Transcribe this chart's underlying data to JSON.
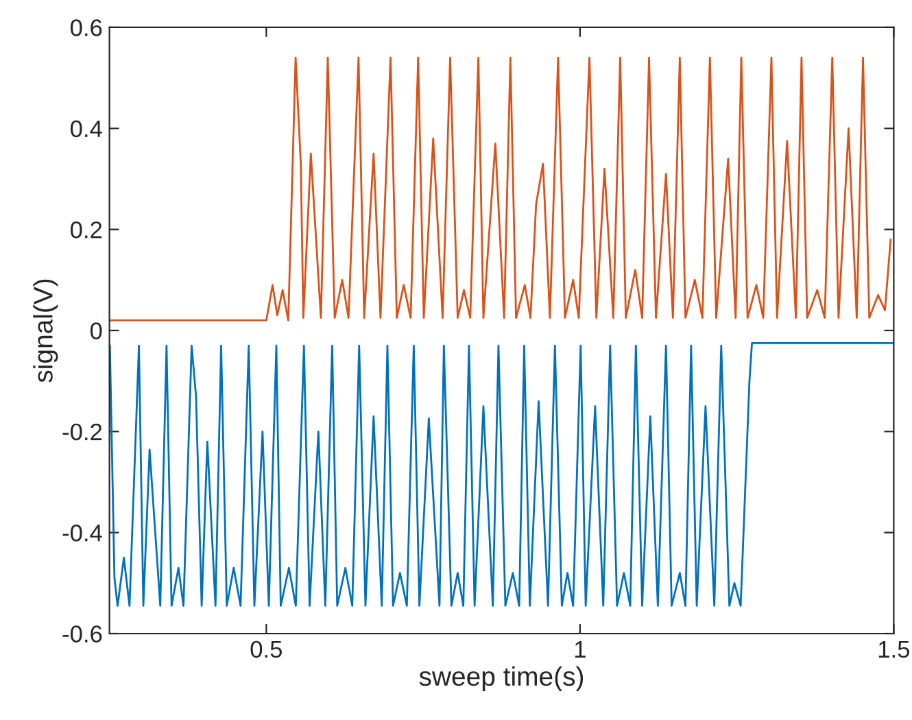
{
  "chart_data": {
    "type": "line",
    "xlabel": "sweep time(s)",
    "ylabel": "signal(V)",
    "xlim": [
      0.25,
      1.5
    ],
    "ylim": [
      -0.6,
      0.6
    ],
    "xticks": [
      0.5,
      1,
      1.5
    ],
    "yticks": [
      -0.6,
      -0.4,
      -0.2,
      0,
      0.2,
      0.4,
      0.6
    ],
    "grid": false,
    "marker": "none",
    "line_style": "solid",
    "series": [
      {
        "color": "#d95319",
        "x": [
          0.25,
          0.5,
          0.51,
          0.5175,
          0.526,
          0.535,
          0.5467,
          0.555,
          0.559,
          0.571,
          0.587,
          0.598,
          0.609,
          0.621,
          0.631,
          0.647,
          0.656,
          0.671,
          0.682,
          0.698,
          0.708,
          0.719,
          0.73,
          0.742,
          0.751,
          0.766,
          0.781,
          0.793,
          0.805,
          0.815,
          0.825,
          0.838,
          0.846,
          0.865,
          0.879,
          0.889,
          0.898,
          0.912,
          0.921,
          0.93,
          0.941,
          0.952,
          0.965,
          0.976,
          0.989,
          0.998,
          1.015,
          1.026,
          1.039,
          1.053,
          1.064,
          1.073,
          1.088,
          1.099,
          1.11,
          1.121,
          1.137,
          1.148,
          1.159,
          1.168,
          1.183,
          1.195,
          1.207,
          1.217,
          1.236,
          1.248,
          1.257,
          1.267,
          1.281,
          1.292,
          1.305,
          1.314,
          1.33,
          1.344,
          1.353,
          1.362,
          1.378,
          1.39,
          1.402,
          1.412,
          1.428,
          1.441,
          1.451,
          1.461,
          1.475,
          1.486,
          1.495
        ],
        "values": [
          0.02,
          0.02,
          0.09,
          0.03,
          0.08,
          0.02,
          0.54,
          0.33,
          0.025,
          0.35,
          0.025,
          0.54,
          0.025,
          0.1,
          0.025,
          0.54,
          0.025,
          0.35,
          0.025,
          0.54,
          0.025,
          0.09,
          0.025,
          0.54,
          0.025,
          0.38,
          0.025,
          0.54,
          0.025,
          0.08,
          0.025,
          0.54,
          0.025,
          0.37,
          0.025,
          0.54,
          0.025,
          0.09,
          0.025,
          0.25,
          0.33,
          0.025,
          0.54,
          0.025,
          0.1,
          0.025,
          0.54,
          0.025,
          0.32,
          0.025,
          0.54,
          0.025,
          0.12,
          0.025,
          0.54,
          0.025,
          0.31,
          0.025,
          0.54,
          0.025,
          0.1,
          0.025,
          0.54,
          0.025,
          0.34,
          0.025,
          0.54,
          0.025,
          0.09,
          0.025,
          0.54,
          0.025,
          0.375,
          0.025,
          0.54,
          0.025,
          0.08,
          0.025,
          0.54,
          0.025,
          0.4,
          0.025,
          0.54,
          0.025,
          0.07,
          0.04,
          0.18
        ]
      },
      {
        "color": "#0072bd",
        "x": [
          0.2507,
          0.258,
          0.263,
          0.273,
          0.282,
          0.297,
          0.304,
          0.314,
          0.331,
          0.341,
          0.349,
          0.36,
          0.368,
          0.381,
          0.388,
          0.397,
          0.406,
          0.419,
          0.428,
          0.437,
          0.448,
          0.459,
          0.472,
          0.481,
          0.494,
          0.504,
          0.516,
          0.523,
          0.536,
          0.547,
          0.56,
          0.569,
          0.583,
          0.594,
          0.605,
          0.613,
          0.626,
          0.637,
          0.648,
          0.658,
          0.671,
          0.684,
          0.693,
          0.702,
          0.713,
          0.724,
          0.735,
          0.744,
          0.759,
          0.776,
          0.783,
          0.795,
          0.805,
          0.814,
          0.823,
          0.832,
          0.846,
          0.861,
          0.87,
          0.881,
          0.893,
          0.903,
          0.911,
          0.92,
          0.934,
          0.949,
          0.96,
          0.971,
          0.98,
          0.989,
          1.001,
          1.009,
          1.024,
          1.037,
          1.048,
          1.059,
          1.07,
          1.08,
          1.089,
          1.099,
          1.112,
          1.124,
          1.137,
          1.146,
          1.159,
          1.168,
          1.177,
          1.186,
          1.2,
          1.214,
          1.225,
          1.238,
          1.246,
          1.256,
          1.27,
          1.274,
          1.5
        ],
        "values": [
          -0.03,
          -0.49,
          -0.545,
          -0.45,
          -0.545,
          -0.03,
          -0.545,
          -0.236,
          -0.545,
          -0.03,
          -0.545,
          -0.47,
          -0.545,
          -0.03,
          -0.13,
          -0.545,
          -0.22,
          -0.545,
          -0.03,
          -0.545,
          -0.47,
          -0.545,
          -0.03,
          -0.545,
          -0.2,
          -0.545,
          -0.03,
          -0.545,
          -0.47,
          -0.545,
          -0.03,
          -0.545,
          -0.2,
          -0.545,
          -0.03,
          -0.545,
          -0.47,
          -0.545,
          -0.03,
          -0.545,
          -0.17,
          -0.545,
          -0.03,
          -0.545,
          -0.48,
          -0.545,
          -0.03,
          -0.545,
          -0.174,
          -0.545,
          -0.03,
          -0.545,
          -0.48,
          -0.545,
          -0.03,
          -0.545,
          -0.15,
          -0.545,
          -0.03,
          -0.545,
          -0.48,
          -0.545,
          -0.03,
          -0.545,
          -0.14,
          -0.545,
          -0.03,
          -0.545,
          -0.48,
          -0.545,
          -0.03,
          -0.545,
          -0.15,
          -0.545,
          -0.03,
          -0.545,
          -0.48,
          -0.545,
          -0.03,
          -0.545,
          -0.17,
          -0.545,
          -0.03,
          -0.545,
          -0.48,
          -0.545,
          -0.03,
          -0.545,
          -0.15,
          -0.545,
          -0.03,
          -0.545,
          -0.5,
          -0.545,
          -0.1,
          -0.025,
          -0.025
        ]
      }
    ]
  }
}
